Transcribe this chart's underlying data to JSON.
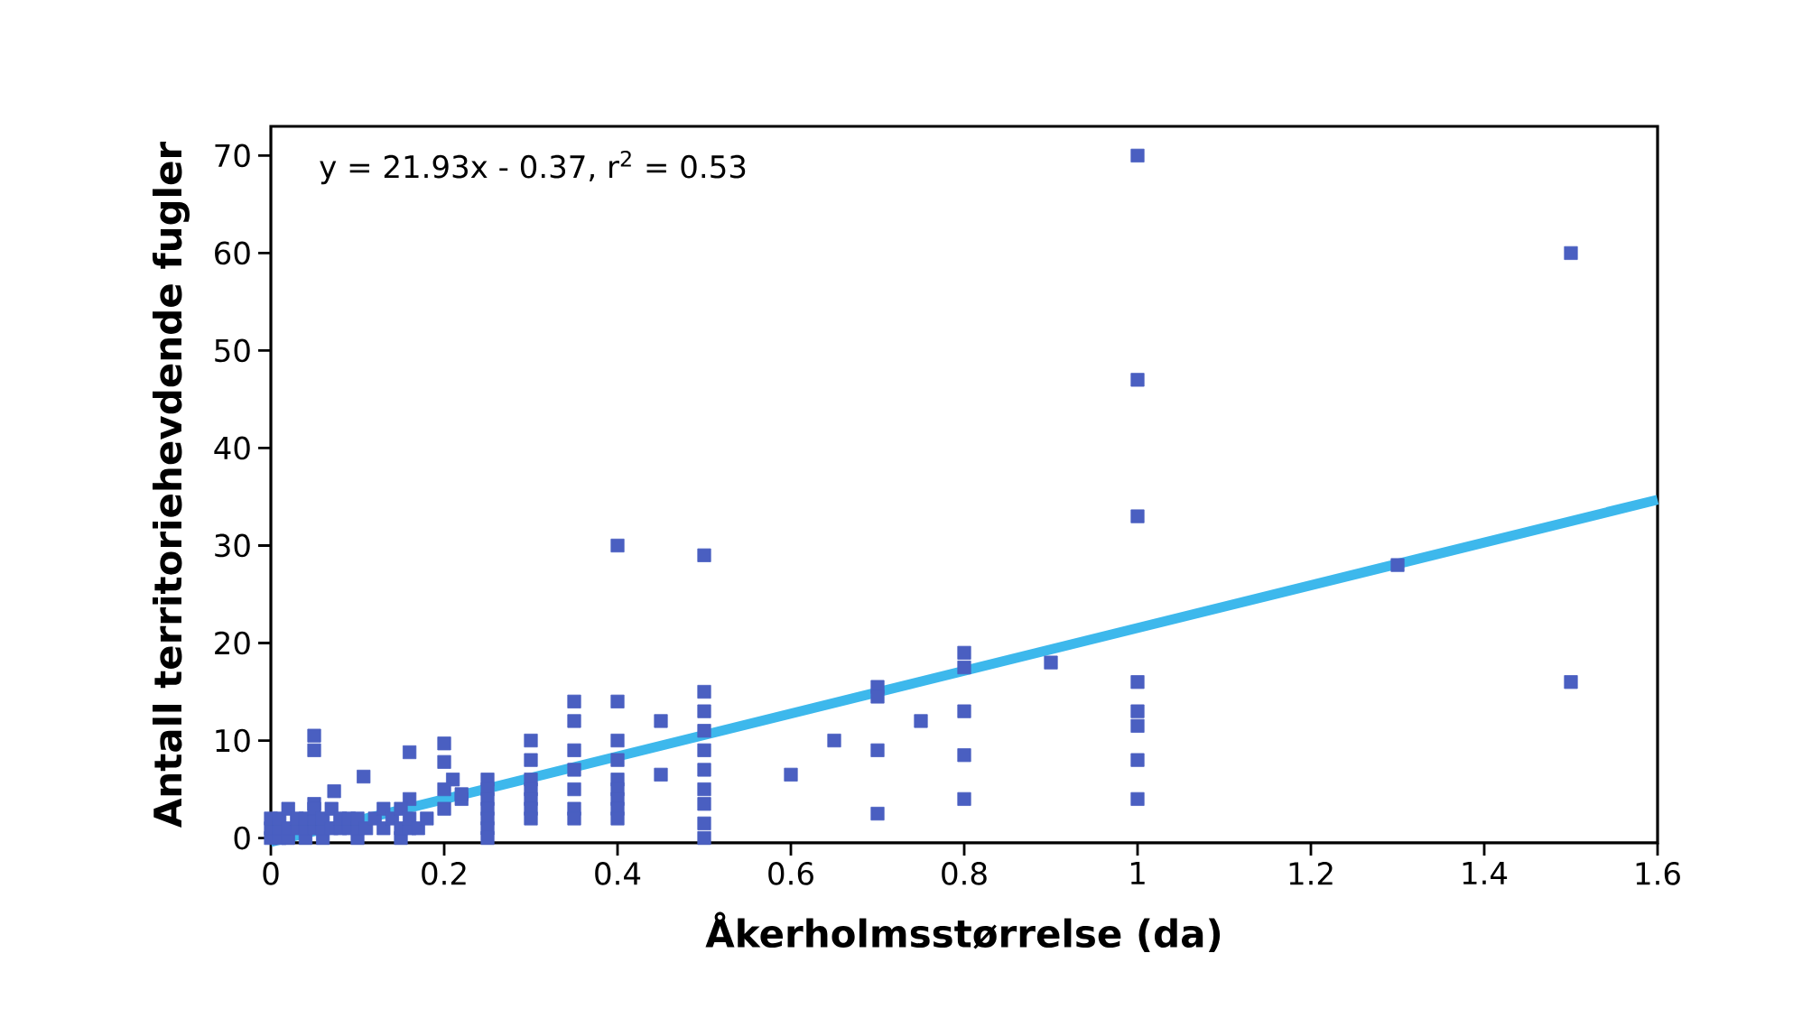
{
  "chart_data": {
    "type": "scatter",
    "xlabel": "Åkerholmsstørrelse (da)",
    "ylabel": "Antall territoriehevdende fugler",
    "annotations": [
      "y = 21.93x - 0.37, r$^{2}$ = 0.53"
    ],
    "xlim": [
      0,
      1.6
    ],
    "ylim": [
      -0.5,
      73
    ],
    "xticks": [
      0,
      0.2,
      0.4,
      0.6,
      0.8,
      1,
      1.2,
      1.4,
      1.6
    ],
    "yticks": [
      0,
      10,
      20,
      30,
      40,
      50,
      60,
      70
    ],
    "grid": false,
    "series": [
      {
        "marker": "square",
        "color": "#4a5fc1",
        "x": [
          1,
          1,
          1,
          1,
          1,
          1,
          1,
          1,
          1.5,
          1.5,
          1.3,
          0.9,
          0.8,
          0.8,
          0.8,
          0.8,
          0.8,
          0.75,
          0.7,
          0.7,
          0.7,
          0.7,
          0.65,
          0.6,
          0.5,
          0.5,
          0.5,
          0.5,
          0.5,
          0.5,
          0.5,
          0.5,
          0.5,
          0.5,
          0.45,
          0.45,
          0.4,
          0.4,
          0.4,
          0.4,
          0.4,
          0.4,
          0.4,
          0.4,
          0.4,
          0.35,
          0.35,
          0.35,
          0.35,
          0.35,
          0.35,
          0.35,
          0.3,
          0.3,
          0.3,
          0.3,
          0.3,
          0.3,
          0.3,
          0.25,
          0.25,
          0.25,
          0.25,
          0.25,
          0.25,
          0.25,
          0.05,
          0.05,
          0.2,
          0.2,
          0.16,
          0.107,
          0.073,
          0.05,
          0.16,
          0.21,
          0.22,
          0,
          0,
          0,
          0.01,
          0.01,
          0.01,
          0.02,
          0.02,
          0.02,
          0.03,
          0.03,
          0.04,
          0.04,
          0.04,
          0.05,
          0.05,
          0.05,
          0.06,
          0.06,
          0.06,
          0.07,
          0.07,
          0.08,
          0.08,
          0.09,
          0.09,
          0.1,
          0.1,
          0.1,
          0.11,
          0.12,
          0.13,
          0.13,
          0.14,
          0.15,
          0.15,
          0.15,
          0.16,
          0.16,
          0.17,
          0.18,
          0.2,
          0.2,
          0.22
        ],
        "values": [
          70,
          47,
          33,
          16,
          13,
          11.5,
          8,
          4,
          60,
          16,
          28,
          18,
          19,
          17.5,
          13,
          8.5,
          4,
          12,
          15.5,
          14.5,
          9,
          2.5,
          10,
          6.5,
          29,
          15,
          13,
          11,
          9,
          7,
          5,
          3.5,
          1.5,
          0,
          12,
          6.5,
          30,
          14,
          10,
          8,
          6,
          5,
          4,
          3,
          2,
          14,
          12,
          9,
          7,
          5,
          3,
          2,
          10,
          8,
          6,
          5,
          4,
          3,
          2,
          6,
          5,
          4,
          3,
          2,
          1,
          0,
          10.5,
          9,
          9.7,
          7.8,
          8.8,
          6.3,
          4.8,
          3.5,
          4,
          6,
          4,
          0,
          1,
          2,
          0,
          1,
          2,
          0,
          1,
          3,
          1,
          2,
          0,
          1,
          2,
          1,
          2,
          3,
          0,
          1,
          2,
          1,
          3,
          1,
          2,
          1,
          2,
          0,
          1,
          2,
          1,
          2,
          1,
          3,
          2,
          0,
          1,
          3,
          1,
          2,
          1,
          2,
          3,
          5,
          4.5
        ]
      },
      {
        "type": "line",
        "color": "#3db8ec",
        "x": [
          0,
          1.6
        ],
        "values": [
          -0.4,
          34.7
        ]
      }
    ]
  }
}
